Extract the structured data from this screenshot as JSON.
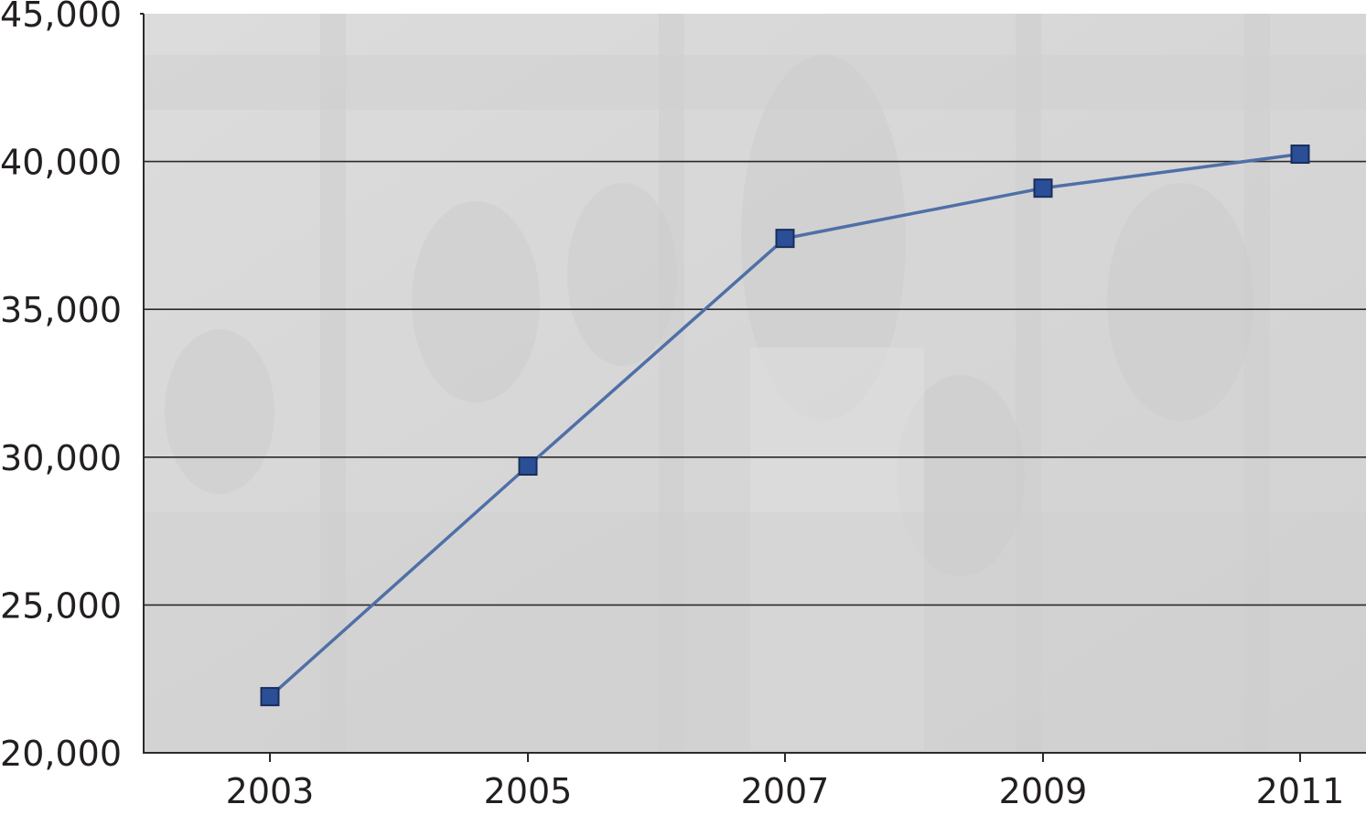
{
  "chart_data": {
    "type": "line",
    "x": [
      "2003",
      "2005",
      "2007",
      "2009",
      "2011"
    ],
    "series": [
      {
        "name": "",
        "values": [
          21900,
          29700,
          37400,
          39100,
          40250
        ]
      }
    ],
    "ylim": [
      20000,
      45000
    ],
    "yticks": [
      20000,
      25000,
      30000,
      35000,
      40000,
      45000
    ],
    "ytick_labels": [
      "20,000",
      "25,000",
      "30,000",
      "35,000",
      "40,000",
      "45,000"
    ],
    "title": "",
    "xlabel": "",
    "ylabel": "",
    "grid": true,
    "legend": "none",
    "colors": {
      "line": "#4f6fa8",
      "marker_fill": "#2b4f96",
      "marker_stroke": "#1a2d5c",
      "gridline": "#2a2a2a",
      "axis": "#2a2a2a",
      "plot_background": "#d9d9d9",
      "text": "#231f20"
    },
    "marker": "square",
    "background_image": "photo of passengers inside a bus (faded)"
  }
}
